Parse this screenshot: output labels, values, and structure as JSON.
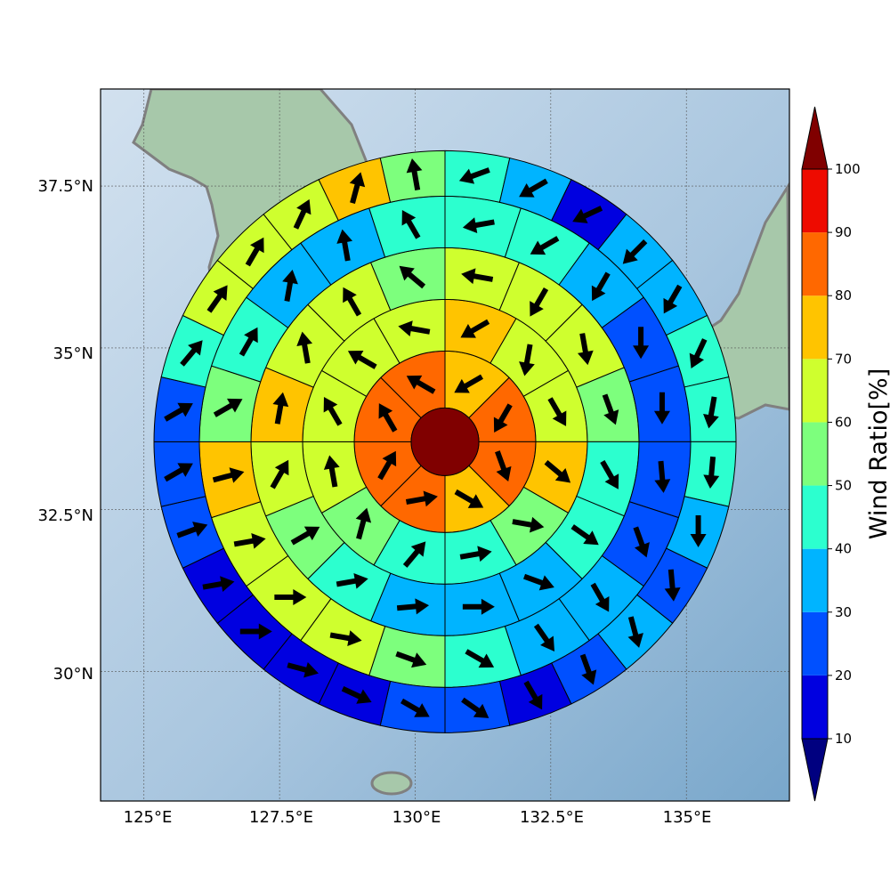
{
  "map": {
    "lat_labels": [
      "37.5°N",
      "35°N",
      "32.5°N",
      "30°N"
    ],
    "lon_labels": [
      "125°E",
      "127.5°E",
      "130°E",
      "132.5°E",
      "135°E"
    ],
    "lon_range": [
      124.2,
      136.9
    ],
    "lat_range": [
      28.0,
      39.0
    ],
    "center": {
      "lon": 130.55,
      "lat": 33.55
    },
    "rings": 5,
    "colors": {
      "land": "#a7c8aa",
      "ocean_light": "#d2e1ef",
      "ocean_dark": "#79a7cb",
      "coastline": "#808080",
      "cell_edge": "#000000",
      "arrow": "#000000",
      "center_cell": "#800000"
    },
    "rings_data": [
      {
        "ring": 1,
        "wind_ratio": [
          75,
          80,
          80,
          70,
          80,
          80,
          80,
          80
        ],
        "wind_direction_deg": [
          240,
          210,
          160,
          120,
          80,
          30,
          330,
          300
        ]
      },
      {
        "ring": 2,
        "wind_ratio": [
          70,
          60,
          60,
          70,
          55,
          40,
          40,
          55,
          65,
          60,
          60,
          60
        ],
        "wind_direction_deg": [
          240,
          190,
          150,
          130,
          100,
          80,
          40,
          15,
          350,
          330,
          300,
          280
        ]
      },
      {
        "ring": 3,
        "wind_ratio": [
          60,
          65,
          60,
          55,
          45,
          40,
          35,
          30,
          35,
          40,
          55,
          65,
          75,
          65,
          65,
          55
        ],
        "wind_direction_deg": [
          280,
          210,
          170,
          160,
          150,
          125,
          110,
          90,
          85,
          80,
          60,
          30,
          10,
          350,
          330,
          310
        ]
      },
      {
        "ring": 4,
        "wind_ratio": [
          40,
          40,
          35,
          25,
          25,
          25,
          25,
          35,
          35,
          45,
          55,
          60,
          60,
          65,
          75,
          55,
          40,
          35,
          35,
          45
        ],
        "wind_direction_deg": [
          260,
          240,
          210,
          180,
          180,
          175,
          160,
          150,
          145,
          120,
          110,
          100,
          90,
          80,
          75,
          60,
          30,
          10,
          350,
          330
        ]
      },
      {
        "ring": 5,
        "wind_ratio": [
          40,
          30,
          15,
          30,
          35,
          45,
          45,
          45,
          35,
          25,
          30,
          25,
          15,
          25,
          20,
          15,
          15,
          10,
          15,
          20,
          20,
          20,
          40,
          60,
          60,
          60,
          75,
          55
        ],
        "wind_direction_deg": [
          250,
          240,
          245,
          225,
          210,
          205,
          190,
          185,
          180,
          175,
          165,
          160,
          150,
          125,
          120,
          115,
          105,
          90,
          80,
          70,
          60,
          60,
          40,
          35,
          30,
          25,
          15,
          350
        ]
      }
    ],
    "center_cell": {
      "wind_ratio": 100
    }
  },
  "colorbar": {
    "title": "Wind Ratio[%]",
    "ticks": [
      "10",
      "20",
      "30",
      "40",
      "50",
      "60",
      "70",
      "80",
      "90",
      "100"
    ],
    "under_color": "#000080",
    "over_color": "#800000",
    "band_colors": [
      "#0000e0",
      "#0050ff",
      "#00b4ff",
      "#2cffcf",
      "#7dff7d",
      "#cfff2e",
      "#ffc400",
      "#ff6800",
      "#ee0b00"
    ]
  }
}
